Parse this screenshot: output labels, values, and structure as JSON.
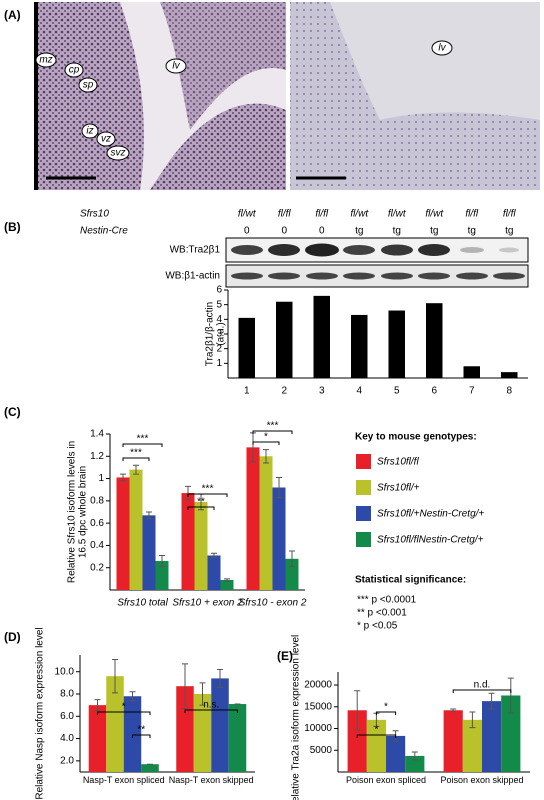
{
  "panel_labels": [
    "(A)",
    "(B)",
    "(C)",
    "(D)",
    "(E)"
  ],
  "histology": {
    "left_labels": [
      "mz",
      "cp",
      "sp",
      "iz",
      "vz",
      "svz",
      "lv"
    ],
    "right_labels": [
      "lv"
    ]
  },
  "blot": {
    "row_headers": [
      "Sfrs10",
      "Nestin-Cre"
    ],
    "genotypes": [
      "fl/wt",
      "fl/fl",
      "fl/fl",
      "fl/wt",
      "fl/wt",
      "fl/wt",
      "fl/fl",
      "fl/fl"
    ],
    "cre": [
      "0",
      "0",
      "0",
      "tg",
      "tg",
      "tg",
      "tg",
      "tg"
    ],
    "wb_labels": [
      "WB:Tra2β1",
      "WB:β1-actin"
    ]
  },
  "key": {
    "title": "Key to mouse genotypes:"
  },
  "significance": {
    "title": "Statistical significance:",
    "lines": [
      "*** p <0.0001",
      "** p <0.001",
      "* p <0.05"
    ]
  },
  "chart_data": [
    {
      "type": "bar",
      "ylabel": [
        "Tra2β1/β-actin",
        "(a.u.)"
      ],
      "categories": [
        "1",
        "2",
        "3",
        "4",
        "5",
        "6",
        "7",
        "8"
      ],
      "values": [
        4.1,
        5.2,
        5.6,
        4.3,
        4.6,
        5.1,
        0.8,
        0.4
      ],
      "color": "#000000",
      "ylim": [
        0,
        6
      ],
      "yticks": [
        1,
        2,
        3,
        4,
        5,
        6
      ]
    },
    {
      "type": "bar",
      "ylabel": [
        "Relative Sfrs10 isoform levels in",
        "16.5 dpc whole brain"
      ],
      "categories": [
        "Sfrs10 total",
        "Sfrs10 + exon 2",
        "Sfrs10 - exon 2"
      ],
      "series": [
        {
          "name": "Sfrs10fl/fl",
          "color": "#e8202a",
          "values": [
            1.01,
            0.87,
            1.28
          ],
          "errors": [
            0.03,
            0.06,
            0.13
          ]
        },
        {
          "name": "Sfrs10fl/+",
          "color": "#b9c22a",
          "values": [
            1.08,
            0.79,
            1.2
          ],
          "errors": [
            0.04,
            0.07,
            0.06
          ]
        },
        {
          "name": "Sfrs10fl/+Nestin-Cretg/+",
          "color": "#2e4aa8",
          "values": [
            0.67,
            0.31,
            0.92
          ],
          "errors": [
            0.03,
            0.02,
            0.09
          ]
        },
        {
          "name": "Sfrs10fl/flNestin-Cretg/+",
          "color": "#138a4a",
          "values": [
            0.26,
            0.09,
            0.28
          ],
          "errors": [
            0.05,
            0.01,
            0.07
          ]
        }
      ],
      "annotations": [
        "***",
        "***",
        "***",
        "**",
        "***",
        "*"
      ],
      "ylim": [
        0,
        1.4
      ],
      "yticks": [
        0.2,
        0.4,
        0.6,
        0.8,
        1,
        1.2,
        1.4
      ]
    },
    {
      "type": "bar",
      "ylabel": [
        "Relative Nasp isoform expression level"
      ],
      "categories": [
        "Nasp-T exon spliced",
        "Nasp-T exon skipped"
      ],
      "series": [
        {
          "color": "#e8202a",
          "values": [
            7.0,
            8.7
          ],
          "errors": [
            0.5,
            2.0
          ]
        },
        {
          "color": "#b9c22a",
          "values": [
            9.6,
            8.0
          ],
          "errors": [
            1.5,
            1.0
          ]
        },
        {
          "color": "#2e4aa8",
          "values": [
            7.8,
            9.4
          ],
          "errors": [
            0.4,
            0.8
          ]
        },
        {
          "color": "#138a4a",
          "values": [
            1.7,
            7.1
          ],
          "errors": [
            0,
            0
          ]
        }
      ],
      "annotations": [
        "*",
        "**",
        "n.s."
      ],
      "ylim": [
        1,
        11.5
      ],
      "yticks": [
        {
          "value": 2,
          "label": "2.0"
        },
        {
          "value": 4,
          "label": "4.0"
        },
        {
          "value": 6,
          "label": "6.0"
        },
        {
          "value": 8,
          "label": "8.0"
        },
        {
          "value": 10,
          "label": "10.0"
        }
      ]
    },
    {
      "type": "bar",
      "ylabel": [
        "Relative Tra2a isoform expression level"
      ],
      "categories": [
        "Poison exon spliced",
        "Poison exon skipped"
      ],
      "series": [
        {
          "color": "#e8202a",
          "values": [
            14200,
            14200
          ],
          "errors": [
            4500,
            300
          ]
        },
        {
          "color": "#b9c22a",
          "values": [
            12000,
            12000
          ],
          "errors": [
            1500,
            1800
          ]
        },
        {
          "color": "#2e4aa8",
          "values": [
            8300,
            16300
          ],
          "errors": [
            1200,
            1800
          ]
        },
        {
          "color": "#138a4a",
          "values": [
            3700,
            17600
          ],
          "errors": [
            900,
            4000
          ]
        }
      ],
      "annotations": [
        "*",
        "*",
        "n.d."
      ],
      "ylim": [
        0,
        23000
      ],
      "yticks": [
        5000,
        10000,
        15000,
        20000
      ]
    }
  ]
}
